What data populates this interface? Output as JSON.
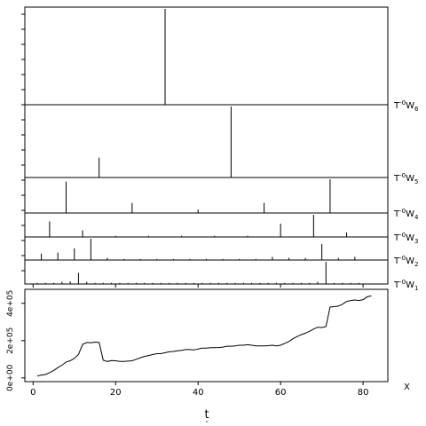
{
  "chart_data": [
    {
      "type": "stem",
      "title": "",
      "levels": [
        {
          "label": "T",
          "sup": "-0",
          "sub": "6",
          "name": "W",
          "spikes": [
            {
              "t": 32,
              "h": 1.0
            }
          ]
        },
        {
          "label": "T",
          "sup": "-0",
          "sub": "5",
          "name": "W",
          "spikes": [
            {
              "t": 16,
              "h": 0.28
            },
            {
              "t": 48,
              "h": 1.0
            }
          ]
        },
        {
          "label": "T",
          "sup": "-0",
          "sub": "4",
          "name": "W",
          "spikes": [
            {
              "t": 8,
              "h": 0.93
            },
            {
              "t": 24,
              "h": 0.3
            },
            {
              "t": 40,
              "h": 0.1
            },
            {
              "t": 56,
              "h": 0.3
            },
            {
              "t": 72,
              "h": 1.0
            }
          ]
        },
        {
          "label": "T",
          "sup": "-0",
          "sub": "3",
          "name": "W",
          "spikes": [
            {
              "t": 4,
              "h": 0.7
            },
            {
              "t": 12,
              "h": 0.3
            },
            {
              "t": 20,
              "h": 0.05
            },
            {
              "t": 28,
              "h": 0.05
            },
            {
              "t": 36,
              "h": 0.05
            },
            {
              "t": 44,
              "h": 0.05
            },
            {
              "t": 52,
              "h": 0.05
            },
            {
              "t": 60,
              "h": 0.6
            },
            {
              "t": 68,
              "h": 1.0
            },
            {
              "t": 76,
              "h": 0.2
            }
          ]
        },
        {
          "label": "T",
          "sup": "-0",
          "sub": "2",
          "name": "W",
          "spikes": [
            {
              "t": 2,
              "h": 0.3
            },
            {
              "t": 6,
              "h": 0.35
            },
            {
              "t": 10,
              "h": 0.55
            },
            {
              "t": 14,
              "h": 1.0
            },
            {
              "t": 18,
              "h": 0.1
            },
            {
              "t": 22,
              "h": 0.05
            },
            {
              "t": 26,
              "h": 0.05
            },
            {
              "t": 30,
              "h": 0.05
            },
            {
              "t": 34,
              "h": 0.05
            },
            {
              "t": 38,
              "h": 0.05
            },
            {
              "t": 42,
              "h": 0.05
            },
            {
              "t": 46,
              "h": 0.05
            },
            {
              "t": 50,
              "h": 0.05
            },
            {
              "t": 54,
              "h": 0.05
            },
            {
              "t": 58,
              "h": 0.15
            },
            {
              "t": 62,
              "h": 0.1
            },
            {
              "t": 66,
              "h": 0.1
            },
            {
              "t": 70,
              "h": 0.75
            },
            {
              "t": 74,
              "h": 0.1
            },
            {
              "t": 78,
              "h": 0.15
            }
          ]
        },
        {
          "label": "T",
          "sup": "-0",
          "sub": "1",
          "name": "W",
          "spikes": [
            {
              "t": 1,
              "h": 0.05
            },
            {
              "t": 3,
              "h": 0.05
            },
            {
              "t": 5,
              "h": 0.05
            },
            {
              "t": 7,
              "h": 0.1
            },
            {
              "t": 9,
              "h": 0.12
            },
            {
              "t": 11,
              "h": 0.5
            },
            {
              "t": 13,
              "h": 0.1
            },
            {
              "t": 15,
              "h": 0.05
            },
            {
              "t": 17,
              "h": 0.05
            },
            {
              "t": 19,
              "h": 0.05
            },
            {
              "t": 21,
              "h": 0.05
            },
            {
              "t": 23,
              "h": 0.05
            },
            {
              "t": 25,
              "h": 0.05
            },
            {
              "t": 27,
              "h": 0.05
            },
            {
              "t": 29,
              "h": 0.05
            },
            {
              "t": 31,
              "h": 0.05
            },
            {
              "t": 33,
              "h": 0.05
            },
            {
              "t": 35,
              "h": 0.05
            },
            {
              "t": 37,
              "h": 0.05
            },
            {
              "t": 39,
              "h": 0.05
            },
            {
              "t": 41,
              "h": 0.05
            },
            {
              "t": 43,
              "h": 0.05
            },
            {
              "t": 45,
              "h": 0.05
            },
            {
              "t": 47,
              "h": 0.05
            },
            {
              "t": 49,
              "h": 0.05
            },
            {
              "t": 51,
              "h": 0.05
            },
            {
              "t": 53,
              "h": 0.05
            },
            {
              "t": 55,
              "h": 0.05
            },
            {
              "t": 57,
              "h": 0.05
            },
            {
              "t": 59,
              "h": 0.05
            },
            {
              "t": 61,
              "h": 0.05
            },
            {
              "t": 63,
              "h": 0.05
            },
            {
              "t": 65,
              "h": 0.05
            },
            {
              "t": 67,
              "h": 0.05
            },
            {
              "t": 69,
              "h": 0.1
            },
            {
              "t": 71,
              "h": 1.0
            },
            {
              "t": 73,
              "h": 0.05
            },
            {
              "t": 75,
              "h": 0.05
            },
            {
              "t": 77,
              "h": 0.05
            },
            {
              "t": 79,
              "h": 0.05
            }
          ]
        }
      ],
      "xlim": [
        -2,
        86
      ],
      "xticks": [
        0,
        20,
        40,
        60,
        80
      ],
      "grid": false
    },
    {
      "type": "line",
      "title": "",
      "series_label": "X",
      "xlabel": "t",
      "xlabel_sub": "ˇ",
      "xlim": [
        -2,
        86
      ],
      "ylim": [
        -20000,
        475000
      ],
      "xticks": [
        0,
        20,
        40,
        60,
        80
      ],
      "yticks": [
        0,
        200000,
        400000
      ],
      "yticklabels": [
        "0e+00",
        "2e+05",
        "4e+05"
      ],
      "grid": false,
      "x": [
        1,
        2,
        3,
        4,
        5,
        6,
        7,
        8,
        9,
        10,
        11,
        12,
        13,
        14,
        15,
        16,
        17,
        18,
        19,
        20,
        21,
        22,
        23,
        24,
        25,
        26,
        27,
        28,
        29,
        30,
        31,
        32,
        33,
        34,
        35,
        36,
        37,
        38,
        39,
        40,
        41,
        42,
        43,
        44,
        45,
        46,
        47,
        48,
        49,
        50,
        51,
        52,
        53,
        54,
        55,
        56,
        57,
        58,
        59,
        60,
        61,
        62,
        63,
        64,
        65,
        66,
        67,
        68,
        69,
        70,
        71,
        72,
        73,
        74,
        75,
        76,
        77,
        78,
        79,
        80,
        81,
        82
      ],
      "y": [
        10000,
        15000,
        18000,
        28000,
        40000,
        55000,
        68000,
        85000,
        92000,
        105000,
        125000,
        180000,
        190000,
        188000,
        192000,
        190000,
        95000,
        88000,
        93000,
        92000,
        88000,
        88000,
        90000,
        92000,
        100000,
        108000,
        115000,
        120000,
        125000,
        130000,
        130000,
        135000,
        140000,
        142000,
        145000,
        148000,
        152000,
        152000,
        150000,
        155000,
        160000,
        160000,
        162000,
        162000,
        163000,
        165000,
        170000,
        170000,
        172000,
        175000,
        175000,
        178000,
        175000,
        172000,
        172000,
        172000,
        173000,
        175000,
        172000,
        175000,
        185000,
        195000,
        210000,
        222000,
        232000,
        240000,
        250000,
        262000,
        272000,
        270000,
        275000,
        380000,
        382000,
        385000,
        395000,
        410000,
        415000,
        418000,
        415000,
        420000,
        435000,
        440000
      ]
    }
  ]
}
